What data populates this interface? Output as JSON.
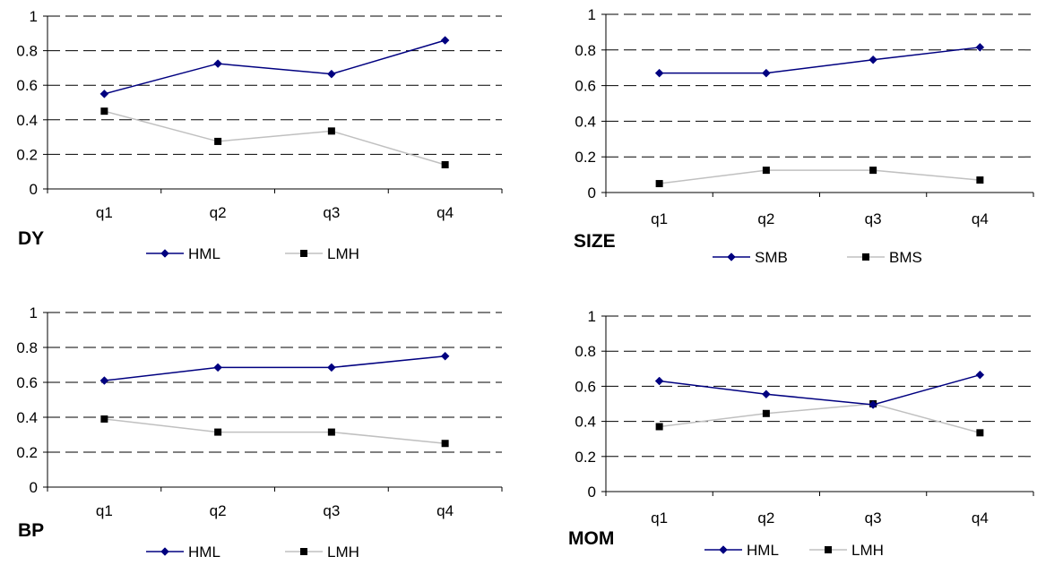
{
  "chart_data": [
    {
      "type": "line",
      "label": "DY",
      "categories": [
        "q1",
        "q2",
        "q3",
        "q4"
      ],
      "ylim": [
        0,
        1
      ],
      "yticks": [
        "0",
        "0.2",
        "0.4",
        "0.6",
        "0.8",
        "1"
      ],
      "grid": "horizontal dashed",
      "legend_placement": "bottom",
      "series": [
        {
          "name": "HML",
          "values": [
            0.55,
            0.725,
            0.665,
            0.86
          ],
          "color": "#000080",
          "marker": "diamond"
        },
        {
          "name": "LMH",
          "values": [
            0.45,
            0.275,
            0.335,
            0.14
          ],
          "color": "#c0c0c0",
          "marker": "square"
        }
      ]
    },
    {
      "type": "line",
      "label": "SIZE",
      "categories": [
        "q1",
        "q2",
        "q3",
        "q4"
      ],
      "ylim": [
        0,
        1
      ],
      "yticks": [
        "0",
        "0.2",
        "0.4",
        "0.6",
        "0.8",
        "1"
      ],
      "grid": "horizontal dashed",
      "legend_placement": "bottom",
      "series": [
        {
          "name": "SMB",
          "values": [
            0.67,
            0.67,
            0.745,
            0.815
          ],
          "color": "#000080",
          "marker": "diamond"
        },
        {
          "name": "BMS",
          "values": [
            0.05,
            0.125,
            0.125,
            0.07
          ],
          "color": "#c0c0c0",
          "marker": "square"
        }
      ]
    },
    {
      "type": "line",
      "label": "BP",
      "categories": [
        "q1",
        "q2",
        "q3",
        "q4"
      ],
      "ylim": [
        0,
        1
      ],
      "yticks": [
        "0",
        "0.2",
        "0.4",
        "0.6",
        "0.8",
        "1"
      ],
      "grid": "horizontal dashed",
      "legend_placement": "bottom",
      "series": [
        {
          "name": "HML",
          "values": [
            0.61,
            0.685,
            0.685,
            0.75
          ],
          "color": "#000080",
          "marker": "diamond"
        },
        {
          "name": "LMH",
          "values": [
            0.39,
            0.315,
            0.315,
            0.25
          ],
          "color": "#c0c0c0",
          "marker": "square"
        }
      ]
    },
    {
      "type": "line",
      "label": "MOM",
      "categories": [
        "q1",
        "q2",
        "q3",
        "q4"
      ],
      "ylim": [
        0,
        1
      ],
      "yticks": [
        "0",
        "0.2",
        "0.4",
        "0.6",
        "0.8",
        "1"
      ],
      "grid": "horizontal dashed",
      "legend_placement": "bottom",
      "series": [
        {
          "name": "HML",
          "values": [
            0.63,
            0.555,
            0.495,
            0.665
          ],
          "color": "#000080",
          "marker": "diamond"
        },
        {
          "name": "LMH",
          "values": [
            0.37,
            0.445,
            0.5,
            0.335
          ],
          "color": "#c0c0c0",
          "marker": "square"
        }
      ]
    }
  ]
}
